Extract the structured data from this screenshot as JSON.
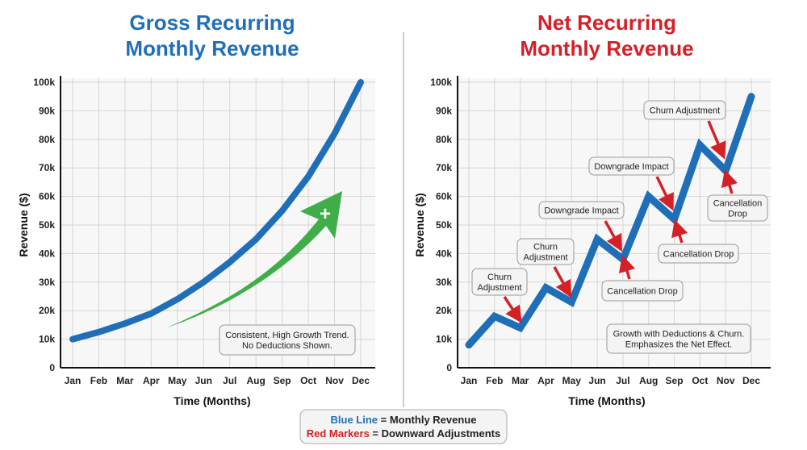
{
  "colors": {
    "blue": "#1f6fb8",
    "red": "#d42027",
    "green": "#3fae49",
    "grid": "#d6d6d6"
  },
  "legend": {
    "blue_key": "Blue Line",
    "blue_text": " = Monthly Revenue",
    "red_key": "Red Markers",
    "red_text": " = Downward Adjustments"
  },
  "chart_data": [
    {
      "type": "line",
      "title": [
        "Gross Recurring",
        "Monthly Revenue"
      ],
      "xlabel": "Time (Months)",
      "ylabel": "Revenue ($)",
      "categories": [
        "Jan",
        "Feb",
        "Mar",
        "Apr",
        "May",
        "Jun",
        "Jul",
        "Aug",
        "Sep",
        "Oct",
        "Nov",
        "Dec"
      ],
      "values": [
        10000,
        12500,
        15500,
        19000,
        24000,
        30000,
        37000,
        45000,
        55000,
        67000,
        82000,
        100000
      ],
      "ylim": [
        0,
        100000
      ],
      "yticks": [
        "0",
        "10k",
        "20k",
        "30k",
        "40k",
        "50k",
        "60k",
        "70k",
        "80k",
        "90k",
        "100k"
      ],
      "grid": true,
      "annotations": [
        {
          "kind": "note",
          "lines": [
            "Consistent, High Growth Trend.",
            "No Deductions Shown."
          ]
        },
        {
          "kind": "green-arrow",
          "symbol": "+"
        }
      ]
    },
    {
      "type": "line",
      "title": [
        "Net Recurring",
        "Monthly Revenue"
      ],
      "xlabel": "Time (Months)",
      "ylabel": "Revenue ($)",
      "categories": [
        "Jan",
        "Feb",
        "Mar",
        "Apr",
        "May",
        "Jun",
        "Jul",
        "Aug",
        "Sep",
        "Oct",
        "Nov",
        "Dec"
      ],
      "values": [
        8000,
        18000,
        14000,
        28000,
        23000,
        45000,
        38000,
        60000,
        52000,
        78000,
        69000,
        95000
      ],
      "ylim": [
        0,
        100000
      ],
      "yticks": [
        "0",
        "10k",
        "20k",
        "30k",
        "40k",
        "50k",
        "60k",
        "70k",
        "80k",
        "90k",
        "100k"
      ],
      "grid": true,
      "annotations": [
        {
          "kind": "label",
          "lines": [
            "Churn",
            "Adjustment"
          ],
          "month": "Mar"
        },
        {
          "kind": "label",
          "lines": [
            "Churn",
            "Adjustment"
          ],
          "month": "May"
        },
        {
          "kind": "label",
          "lines": [
            "Downgrade Impact"
          ],
          "month": "Jul"
        },
        {
          "kind": "label",
          "lines": [
            "Cancellation Drop"
          ],
          "month": "Jul"
        },
        {
          "kind": "label",
          "lines": [
            "Downgrade Impact"
          ],
          "month": "Sep"
        },
        {
          "kind": "label",
          "lines": [
            "Cancellation Drop"
          ],
          "month": "Sep"
        },
        {
          "kind": "label",
          "lines": [
            "Churn Adjustment"
          ],
          "month": "Nov"
        },
        {
          "kind": "label",
          "lines": [
            "Cancellation",
            "Drop"
          ],
          "month": "Nov"
        },
        {
          "kind": "note",
          "lines": [
            "Growth with Deductions & Churn.",
            "Emphasizes the Net Effect."
          ]
        }
      ]
    }
  ]
}
